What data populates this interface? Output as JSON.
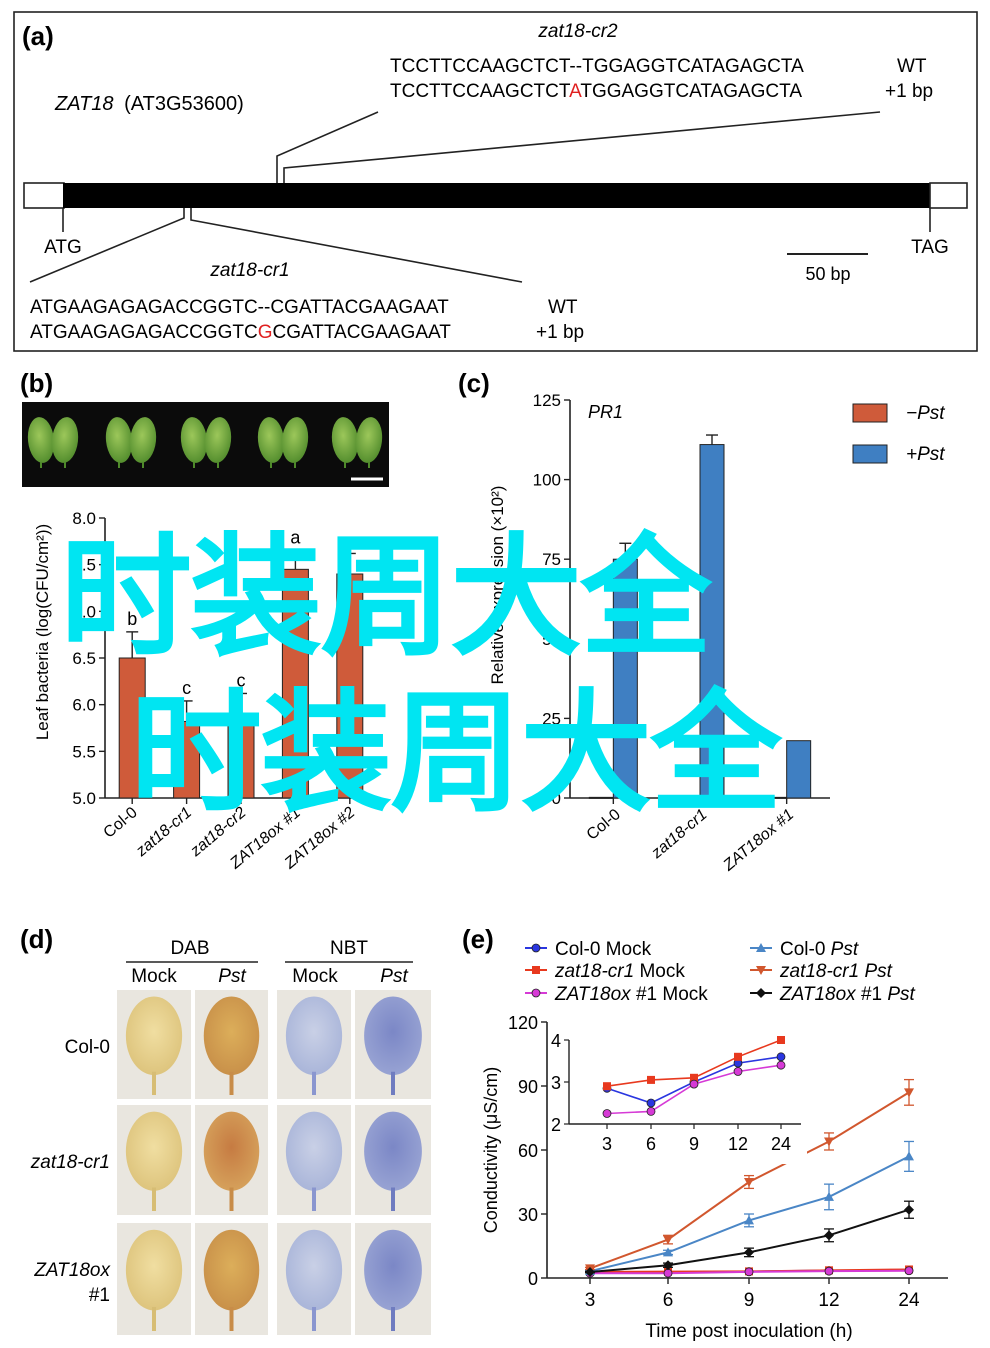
{
  "colors": {
    "orange": "#cf5b3a",
    "blue": "#3f7fc2",
    "leaf_green": "#6ea43a",
    "red_letter": "#e02020",
    "overlay": "#00e5f2"
  },
  "panel_a": {
    "label": "(a)",
    "gene": "ZAT18",
    "gene_id": "(AT3G53600)",
    "start_codon": "ATG",
    "stop_codon": "TAG",
    "scale_bar": "50 bp",
    "cr2": {
      "name": "zat18-cr2",
      "wt_seq": "TCCTTCCAAGCTCT--TGGAGGTCATAGAGCTA",
      "wt_tag": "WT",
      "mut_pre": "TCCTTCCAAGCTCT",
      "mut_ins": "A",
      "mut_post": "TGGAGGTCATAGAGCTA",
      "mut_tag": "+1 bp"
    },
    "cr1": {
      "name": "zat18-cr1",
      "wt_seq": "ATGAAGAGAGACCGGTC--CGATTACGAAGAAT",
      "wt_tag": "WT",
      "mut_pre": "ATGAAGAGAGACCGGTC",
      "mut_ins": "G",
      "mut_post": "CGATTACGAAGAAT",
      "mut_tag": "+1 bp"
    }
  },
  "panel_b": {
    "label": "(b)",
    "ylabel": "Leaf bacteria (log(CFU/cm²))",
    "letters": [
      "b",
      "c",
      "c",
      "a",
      "a"
    ]
  },
  "panel_c": {
    "label": "(c)",
    "title": "PR1",
    "ylabel": "Relative expression (×10²)",
    "legend": [
      "−Pst",
      "+Pst"
    ]
  },
  "panel_d": {
    "label": "(d)",
    "groups": [
      "DAB",
      "NBT"
    ],
    "cols": [
      "Mock",
      "Pst",
      "Mock",
      "Pst"
    ],
    "rows": [
      "Col-0",
      "zat18-cr1",
      "ZAT18ox",
      "#1"
    ]
  },
  "panel_e": {
    "label": "(e)",
    "legend": [
      {
        "name": "Col-0 Mock"
      },
      {
        "name": "Col-0 Pst"
      },
      {
        "name": "zat18-cr1 Mock"
      },
      {
        "name": "zat18-cr1 Pst"
      },
      {
        "name": "ZAT18ox #1 Mock"
      },
      {
        "name": "ZAT18ox #1 Pst"
      }
    ]
  },
  "overlay_text": "时装周大全",
  "chart_data": [
    {
      "type": "bar",
      "panel": "b",
      "categories": [
        "Col-0",
        "zat18-cr1",
        "zat18-cr2",
        "ZAT18ox #1",
        "ZAT18ox #2"
      ],
      "values": [
        6.5,
        5.82,
        5.9,
        7.45,
        7.4
      ],
      "errors": [
        0.28,
        0.22,
        0.22,
        0.2,
        0.22
      ],
      "ylabel": "Leaf bacteria (log(CFU/cm²))",
      "ylim": [
        5.0,
        8.0
      ],
      "yticks": [
        5.0,
        5.5,
        6.0,
        6.5,
        7.0,
        7.5,
        8.0
      ],
      "color": "#cf5b3a"
    },
    {
      "type": "bar",
      "panel": "c",
      "title": "PR1",
      "categories": [
        "Col-0",
        "zat18-cr1",
        "ZAT18ox #1"
      ],
      "series": [
        {
          "name": "−Pst",
          "values": [
            0.2,
            0.2,
            0.2
          ],
          "errors": [
            0,
            0,
            0
          ],
          "color": "#cf5b3a"
        },
        {
          "name": "+Pst",
          "values": [
            75,
            111,
            18
          ],
          "errors": [
            5,
            3,
            0
          ],
          "color": "#3f7fc2"
        }
      ],
      "ylabel": "Relative expression (×10²)",
      "ylim": [
        0,
        125
      ],
      "yticks": [
        0,
        25,
        50,
        75,
        100,
        125
      ]
    },
    {
      "type": "line",
      "panel": "e",
      "x": [
        3,
        6,
        9,
        12,
        24
      ],
      "xlabel": "Time post inoculation (h)",
      "ylabel": "Conductivity (μS/cm)",
      "ylim": [
        0,
        120
      ],
      "yticks": [
        0,
        30,
        60,
        90,
        120
      ],
      "series": [
        {
          "name": "Col-0 Mock",
          "values": [
            2.8,
            2.5,
            3.0,
            3.5,
            3.6
          ],
          "color": "#2a36e0",
          "marker": "circle"
        },
        {
          "name": "zat18-cr1 Mock",
          "values": [
            2.9,
            3.0,
            3.1,
            3.6,
            4.0
          ],
          "color": "#e8391e",
          "marker": "square"
        },
        {
          "name": "ZAT18ox #1 Mock",
          "values": [
            2.2,
            2.25,
            2.9,
            3.2,
            3.4
          ],
          "color": "#d63ad6",
          "marker": "circle"
        },
        {
          "name": "Col-0 Pst",
          "values": [
            3.2,
            12,
            27,
            38,
            57
          ],
          "errors": [
            0.4,
            1,
            3,
            6,
            7
          ],
          "color": "#4a86c6",
          "marker": "triangle-up"
        },
        {
          "name": "zat18-cr1 Pst",
          "values": [
            4.5,
            18,
            45,
            64,
            87
          ],
          "errors": [
            0.5,
            2,
            3,
            4,
            6
          ],
          "color": "#d1572e",
          "marker": "triangle-down"
        },
        {
          "name": "ZAT18ox #1 Pst",
          "values": [
            2.8,
            6,
            12,
            20,
            32
          ],
          "errors": [
            0.3,
            1,
            2,
            3,
            4
          ],
          "color": "#111111",
          "marker": "diamond"
        }
      ],
      "inset": {
        "x": [
          3,
          6,
          9,
          12,
          24
        ],
        "ylim": [
          2,
          4
        ],
        "yticks": [
          2,
          3,
          4
        ],
        "series": [
          {
            "name": "Col-0 Mock",
            "values": [
              2.85,
              2.5,
              3.0,
              3.45,
              3.6
            ],
            "color": "#2a36e0"
          },
          {
            "name": "zat18-cr1 Mock",
            "values": [
              2.9,
              3.05,
              3.1,
              3.6,
              4.0
            ],
            "color": "#e8391e"
          },
          {
            "name": "ZAT18ox #1 Mock",
            "values": [
              2.25,
              2.3,
              2.95,
              3.25,
              3.4
            ],
            "color": "#d63ad6"
          }
        ]
      }
    }
  ]
}
